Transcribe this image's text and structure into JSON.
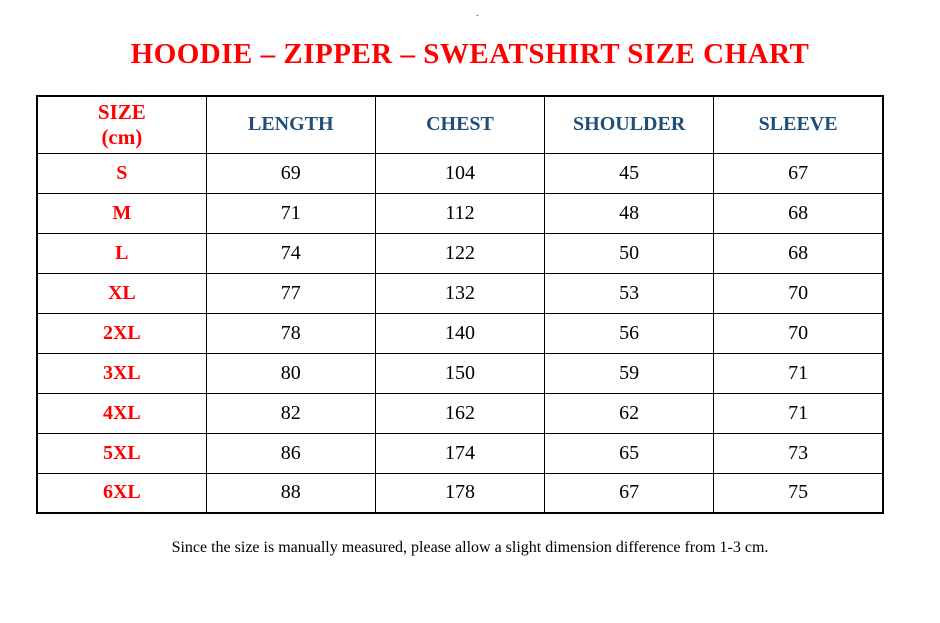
{
  "page": {
    "stray_dot": "."
  },
  "title": "HOODIE – ZIPPER – SWEATSHIRT SIZE CHART",
  "table": {
    "header": {
      "size_label": "SIZE",
      "size_unit": "(cm)",
      "columns": [
        "LENGTH",
        "CHEST",
        "SHOULDER",
        "SLEEVE"
      ]
    },
    "rows": [
      {
        "size": "S",
        "length": "69",
        "chest": "104",
        "shoulder": "45",
        "sleeve": "67"
      },
      {
        "size": "M",
        "length": "71",
        "chest": "112",
        "shoulder": "48",
        "sleeve": "68"
      },
      {
        "size": "L",
        "length": "74",
        "chest": "122",
        "shoulder": "50",
        "sleeve": "68"
      },
      {
        "size": "XL",
        "length": "77",
        "chest": "132",
        "shoulder": "53",
        "sleeve": "70"
      },
      {
        "size": "2XL",
        "length": "78",
        "chest": "140",
        "shoulder": "56",
        "sleeve": "70"
      },
      {
        "size": "3XL",
        "length": "80",
        "chest": "150",
        "shoulder": "59",
        "sleeve": "71"
      },
      {
        "size": "4XL",
        "length": "82",
        "chest": "162",
        "shoulder": "62",
        "sleeve": "71"
      },
      {
        "size": "5XL",
        "length": "86",
        "chest": "174",
        "shoulder": "65",
        "sleeve": "73"
      },
      {
        "size": "6XL",
        "length": "88",
        "chest": "178",
        "shoulder": "67",
        "sleeve": "75"
      }
    ]
  },
  "footer": {
    "note": "Since the size is manually measured, please allow a slight dimension difference from 1-3 cm."
  },
  "colors": {
    "accent_red": "#ff0000",
    "header_blue": "#1f4e79",
    "text_black": "#000000",
    "border_black": "#000000",
    "background": "#ffffff"
  }
}
